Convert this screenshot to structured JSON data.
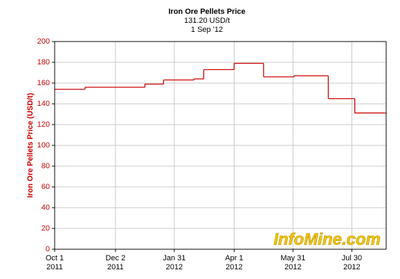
{
  "chart_data": {
    "type": "step",
    "title": "Iron Ore Pellets Price",
    "subtitle": "131.20 USD/t",
    "date": "1 Sep '12",
    "y_label": "Iron Ore Pellets Price (USD/t)",
    "watermark": "InfoMine.com",
    "x": [
      "2011-10-01",
      "2011-11-01",
      "2012-01-01",
      "2012-01-20",
      "2012-02-20",
      "2012-03-01",
      "2012-04-01",
      "2012-05-01",
      "2012-06-01",
      "2012-07-06",
      "2012-08-02",
      "2012-09-01"
    ],
    "values": [
      154,
      156,
      159,
      163,
      164,
      173,
      179,
      166,
      167,
      145,
      131.2,
      131.2
    ],
    "color": "#cc0000",
    "xlim": [
      "2011-10-01",
      "2012-09-03"
    ],
    "xticks": [
      {
        "value": "2011-10-01",
        "label": [
          "Oct 1",
          "2011"
        ]
      },
      {
        "value": "2011-12-02",
        "label": [
          "Dec 2",
          "2011"
        ]
      },
      {
        "value": "2012-01-31",
        "label": [
          "Jan 31",
          "2012"
        ]
      },
      {
        "value": "2012-04-01",
        "label": [
          "Apr 1",
          "2012"
        ]
      },
      {
        "value": "2012-05-31",
        "label": [
          "May 31",
          "2012"
        ]
      },
      {
        "value": "2012-07-30",
        "label": [
          "Jul 30",
          "2012"
        ]
      }
    ],
    "ylim": [
      0,
      200
    ],
    "yticks": [
      0,
      20,
      40,
      60,
      80,
      100,
      120,
      140,
      160,
      180,
      200
    ],
    "grid": true
  }
}
